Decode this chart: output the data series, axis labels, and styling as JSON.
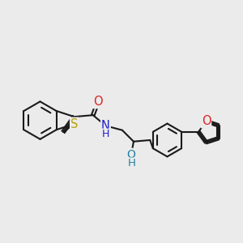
{
  "background_color": "#ebebeb",
  "bond_color": "#1a1a1a",
  "bond_lw": 1.5,
  "atom_colors": {
    "S": "#b8a000",
    "N": "#2020cc",
    "O": "#dd2222",
    "OH_color": "#2080a0",
    "C": "#1a1a1a"
  },
  "fs": 9.5,
  "fig_w": 3.0,
  "fig_h": 3.0,
  "dpi": 100,
  "xlim": [
    0,
    10.5
  ],
  "ylim": [
    0,
    7
  ]
}
